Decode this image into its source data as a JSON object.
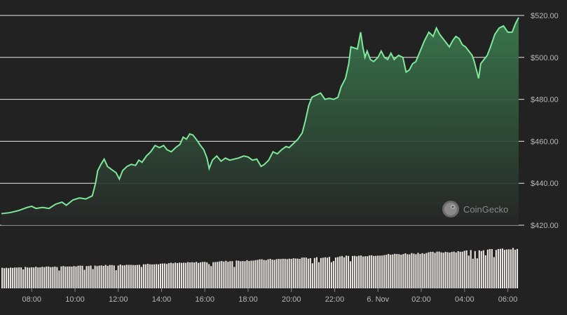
{
  "chart_data": {
    "type": "area",
    "title": "",
    "xlabel": "",
    "ylabel": "",
    "ylim": [
      420,
      520
    ],
    "grid": true,
    "y_ticks": [
      {
        "value": 420,
        "label": "$420.00"
      },
      {
        "value": 440,
        "label": "$440.00"
      },
      {
        "value": 460,
        "label": "$460.00"
      },
      {
        "value": 480,
        "label": "$480.00"
      },
      {
        "value": 500,
        "label": "$500.00"
      },
      {
        "value": 520,
        "label": "$520.00"
      }
    ],
    "x_range_hours": [
      6.6,
      30.5
    ],
    "x_ticks": [
      {
        "hour": 8,
        "label": "08:00"
      },
      {
        "hour": 10,
        "label": "10:00"
      },
      {
        "hour": 12,
        "label": "12:00"
      },
      {
        "hour": 14,
        "label": "14:00"
      },
      {
        "hour": 16,
        "label": "16:00"
      },
      {
        "hour": 18,
        "label": "18:00"
      },
      {
        "hour": 20,
        "label": "20:00"
      },
      {
        "hour": 22,
        "label": "22:00"
      },
      {
        "hour": 24,
        "label": "6. Nov"
      },
      {
        "hour": 26,
        "label": "02:00"
      },
      {
        "hour": 28,
        "label": "04:00"
      },
      {
        "hour": 30,
        "label": "06:00"
      }
    ],
    "series": [
      {
        "values": [
          [
            6.6,
            425.5
          ],
          [
            7.0,
            426
          ],
          [
            7.4,
            427
          ],
          [
            7.8,
            428.5
          ],
          [
            8.0,
            429
          ],
          [
            8.2,
            428
          ],
          [
            8.5,
            428.5
          ],
          [
            8.8,
            428
          ],
          [
            9.1,
            430
          ],
          [
            9.4,
            431
          ],
          [
            9.6,
            429.5
          ],
          [
            9.9,
            432
          ],
          [
            10.2,
            433
          ],
          [
            10.5,
            432.5
          ],
          [
            10.8,
            434
          ],
          [
            10.95,
            440
          ],
          [
            11.05,
            446
          ],
          [
            11.2,
            449
          ],
          [
            11.35,
            451.5
          ],
          [
            11.5,
            448
          ],
          [
            11.7,
            446.5
          ],
          [
            11.9,
            445
          ],
          [
            12.05,
            442
          ],
          [
            12.2,
            446
          ],
          [
            12.4,
            448
          ],
          [
            12.6,
            449
          ],
          [
            12.8,
            448.5
          ],
          [
            12.95,
            451
          ],
          [
            13.1,
            450
          ],
          [
            13.3,
            453
          ],
          [
            13.5,
            455
          ],
          [
            13.7,
            458
          ],
          [
            13.9,
            457
          ],
          [
            14.1,
            458
          ],
          [
            14.25,
            456
          ],
          [
            14.45,
            455
          ],
          [
            14.65,
            457
          ],
          [
            14.85,
            458.5
          ],
          [
            15.0,
            462
          ],
          [
            15.15,
            461
          ],
          [
            15.3,
            463.5
          ],
          [
            15.45,
            463
          ],
          [
            15.6,
            461
          ],
          [
            15.8,
            458
          ],
          [
            15.95,
            456
          ],
          [
            16.1,
            452
          ],
          [
            16.2,
            447
          ],
          [
            16.35,
            451
          ],
          [
            16.55,
            453
          ],
          [
            16.75,
            450.5
          ],
          [
            16.95,
            452
          ],
          [
            17.15,
            451
          ],
          [
            17.35,
            451.5
          ],
          [
            17.55,
            452
          ],
          [
            17.8,
            453
          ],
          [
            18.0,
            452.5
          ],
          [
            18.2,
            451
          ],
          [
            18.4,
            451.5
          ],
          [
            18.6,
            448
          ],
          [
            18.75,
            449
          ],
          [
            18.95,
            451
          ],
          [
            19.15,
            455
          ],
          [
            19.35,
            454
          ],
          [
            19.55,
            456
          ],
          [
            19.75,
            457.5
          ],
          [
            19.9,
            457
          ],
          [
            20.1,
            459
          ],
          [
            20.3,
            461
          ],
          [
            20.5,
            464
          ],
          [
            20.65,
            470
          ],
          [
            20.8,
            477
          ],
          [
            20.95,
            481
          ],
          [
            21.15,
            482
          ],
          [
            21.35,
            483
          ],
          [
            21.55,
            480
          ],
          [
            21.75,
            480.5
          ],
          [
            21.95,
            480
          ],
          [
            22.15,
            481
          ],
          [
            22.3,
            486
          ],
          [
            22.5,
            490
          ],
          [
            22.65,
            497
          ],
          [
            22.75,
            505
          ],
          [
            22.9,
            504.5
          ],
          [
            23.05,
            504
          ],
          [
            23.2,
            512
          ],
          [
            23.3,
            505
          ],
          [
            23.4,
            500
          ],
          [
            23.5,
            503
          ],
          [
            23.65,
            499
          ],
          [
            23.8,
            498
          ],
          [
            24.0,
            500
          ],
          [
            24.15,
            503
          ],
          [
            24.3,
            500
          ],
          [
            24.45,
            499
          ],
          [
            24.6,
            502
          ],
          [
            24.75,
            499
          ],
          [
            24.95,
            501
          ],
          [
            25.15,
            500
          ],
          [
            25.3,
            493
          ],
          [
            25.45,
            494
          ],
          [
            25.6,
            497
          ],
          [
            25.75,
            498
          ],
          [
            25.95,
            503
          ],
          [
            26.15,
            508
          ],
          [
            26.35,
            512
          ],
          [
            26.55,
            510
          ],
          [
            26.7,
            514
          ],
          [
            26.85,
            511
          ],
          [
            27.0,
            509
          ],
          [
            27.15,
            507
          ],
          [
            27.3,
            505
          ],
          [
            27.45,
            508
          ],
          [
            27.6,
            510
          ],
          [
            27.75,
            509
          ],
          [
            27.9,
            506
          ],
          [
            28.05,
            505
          ],
          [
            28.2,
            503
          ],
          [
            28.35,
            501
          ],
          [
            28.45,
            498
          ],
          [
            28.55,
            494
          ],
          [
            28.65,
            490
          ],
          [
            28.75,
            497
          ],
          [
            28.9,
            499
          ],
          [
            29.05,
            501
          ],
          [
            29.2,
            505
          ],
          [
            29.4,
            511
          ],
          [
            29.6,
            514
          ],
          [
            29.8,
            515
          ],
          [
            30.0,
            512
          ],
          [
            30.2,
            512
          ],
          [
            30.35,
            516
          ],
          [
            30.5,
            519
          ]
        ]
      }
    ],
    "volume": {
      "note": "relative",
      "start": 0.44,
      "end": 0.85,
      "ylim": [
        0,
        1
      ]
    },
    "colors": {
      "line": "#7ee89a",
      "area_top": "#3a7a4e",
      "area_bottom": "#262626",
      "volume_bar": "#e8e6e0",
      "background": "#222222"
    }
  },
  "watermark": {
    "text": "CoinGecko",
    "icon": "gecko-logo-icon"
  }
}
